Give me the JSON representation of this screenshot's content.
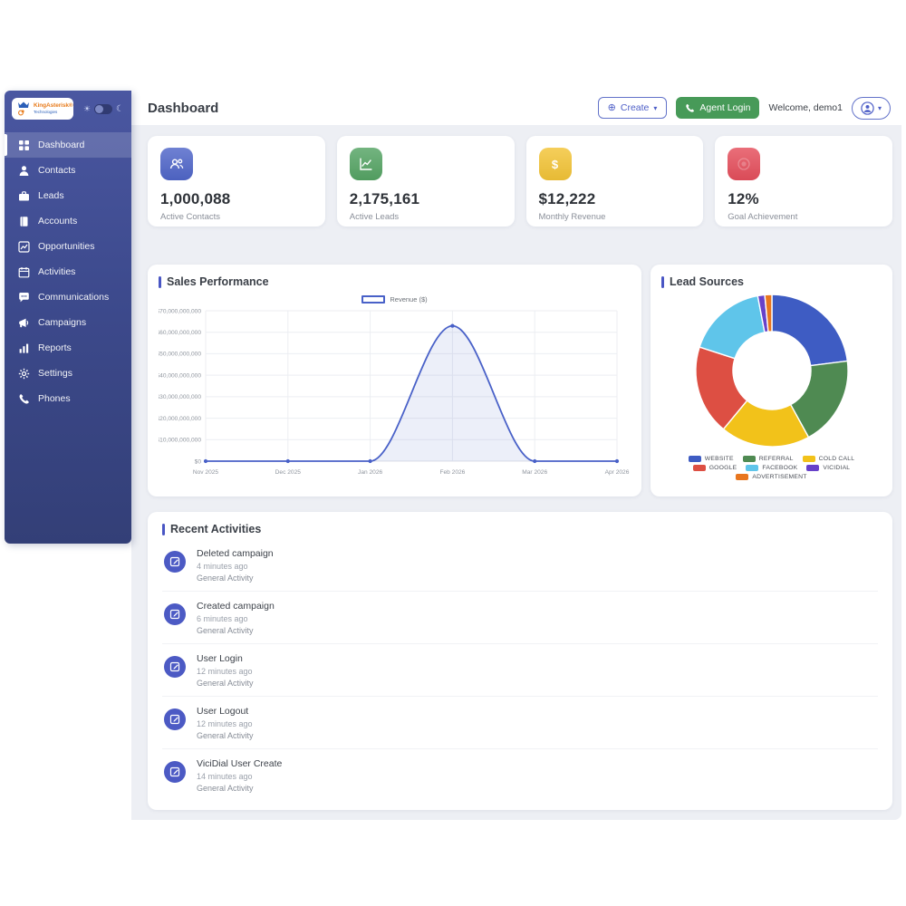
{
  "logo": {
    "title": "KingAsterisk®",
    "subtitle": "Technologies"
  },
  "sidebar": {
    "items": [
      {
        "label": "Dashboard",
        "icon": "grid-icon",
        "active": true
      },
      {
        "label": "Contacts",
        "icon": "person-icon",
        "active": false
      },
      {
        "label": "Leads",
        "icon": "briefcase-icon",
        "active": false
      },
      {
        "label": "Accounts",
        "icon": "book-icon",
        "active": false
      },
      {
        "label": "Opportunities",
        "icon": "chart-line-icon",
        "active": false
      },
      {
        "label": "Activities",
        "icon": "calendar-icon",
        "active": false
      },
      {
        "label": "Communications",
        "icon": "chat-icon",
        "active": false
      },
      {
        "label": "Campaigns",
        "icon": "megaphone-icon",
        "active": false
      },
      {
        "label": "Reports",
        "icon": "bar-chart-icon",
        "active": false
      },
      {
        "label": "Settings",
        "icon": "gear-icon",
        "active": false
      },
      {
        "label": "Phones",
        "icon": "phone-icon",
        "active": false
      }
    ]
  },
  "header": {
    "title": "Dashboard",
    "create_label": "Create",
    "agent_login_label": "Agent Login",
    "welcome": "Welcome, demo1"
  },
  "stats": [
    {
      "value": "1,000,088",
      "label": "Active Contacts",
      "color": "#5066c9",
      "icon": "users-icon"
    },
    {
      "value": "2,175,161",
      "label": "Active Leads",
      "color": "#55a464",
      "icon": "trend-chart-icon"
    },
    {
      "value": "$12,222",
      "label": "Monthly Revenue",
      "color": "#f3c437",
      "icon": "dollar-icon"
    },
    {
      "value": "12%",
      "label": "Goal Achievement",
      "color": "#e54f5c",
      "icon": "target-icon"
    }
  ],
  "chart_data": [
    {
      "type": "line",
      "title": "Sales Performance",
      "legend": "Revenue ($)",
      "legend_position": "top",
      "x": [
        "Nov 2025",
        "Dec 2025",
        "Jan 2026",
        "Feb 2026",
        "Mar 2026",
        "Apr 2026"
      ],
      "series": [
        {
          "name": "Revenue ($)",
          "values": [
            0,
            0,
            0,
            63000000000,
            0,
            0
          ]
        }
      ],
      "ylim": [
        0,
        70000000000
      ],
      "ytick_step": 10000000000,
      "ytick_labels": [
        "$0",
        "$10,000,000,000",
        "$20,000,000,000",
        "$30,000,000,000",
        "$40,000,000,000",
        "$50,000,000,000",
        "$60,000,000,000",
        "$70,000,000,000"
      ],
      "grid": true,
      "line_color": "#4961c8",
      "fill_color": "rgba(73,97,200,0.10)",
      "smooth": true
    },
    {
      "type": "pie",
      "variant": "doughnut",
      "title": "Lead Sources",
      "labels": [
        "WEBSITE",
        "REFERRAL",
        "COLD CALL",
        "GOOGLE",
        "FACEBOOK",
        "VICIDIAL",
        "ADVERTISEMENT"
      ],
      "values": [
        23,
        19,
        19,
        19,
        17,
        1.5,
        1.5
      ],
      "colors": [
        "#3e5cc3",
        "#4f8a52",
        "#f2c21a",
        "#dd4f43",
        "#5fc5ea",
        "#6741c9",
        "#e8761f"
      ],
      "legend_position": "bottom"
    }
  ],
  "activities": {
    "title": "Recent Activities",
    "items": [
      {
        "title": "Deleted campaign",
        "time": "4 minutes ago",
        "category": "General Activity"
      },
      {
        "title": "Created campaign",
        "time": "6 minutes ago",
        "category": "General Activity"
      },
      {
        "title": "User Login",
        "time": "12 minutes ago",
        "category": "General Activity"
      },
      {
        "title": "User Logout",
        "time": "12 minutes ago",
        "category": "General Activity"
      },
      {
        "title": "ViciDial User Create",
        "time": "14 minutes ago",
        "category": "General Activity"
      }
    ]
  }
}
